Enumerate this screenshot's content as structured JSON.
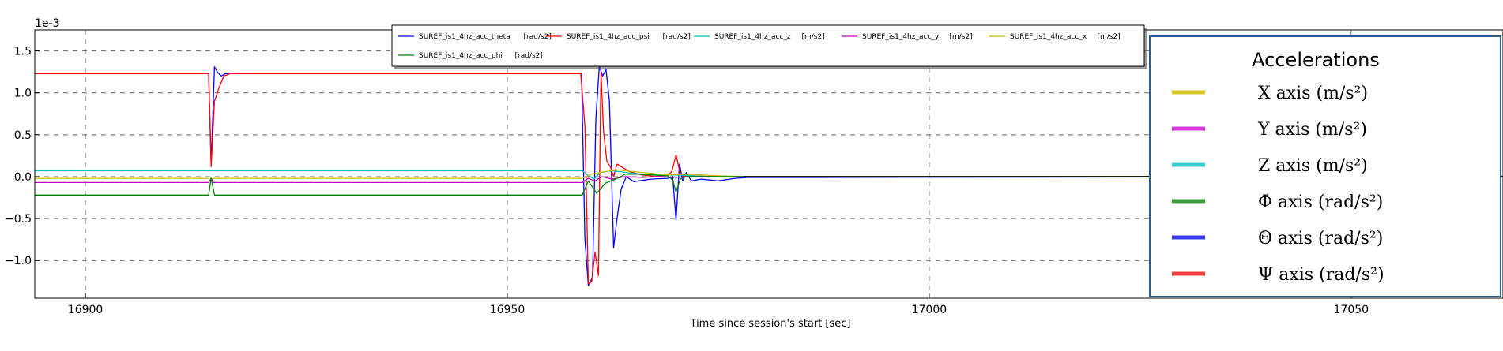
{
  "chart_data": {
    "type": "line",
    "title": "",
    "xlabel": "Time since session's start [sec]",
    "ylabel": "",
    "y_offset_label": "1e-3",
    "xlim": [
      16894,
      17068
    ],
    "ylim": [
      -1.45,
      1.75
    ],
    "x_ticks": [
      16900,
      16950,
      17000,
      17050
    ],
    "y_ticks": [
      -1.0,
      -0.5,
      0.0,
      0.5,
      1.0,
      1.5
    ],
    "y_tick_labels": [
      "−1.0",
      "−0.5",
      "0.0",
      "0.5",
      "1.0",
      "1.5"
    ],
    "grid": true,
    "legend_position": "top",
    "series": [
      {
        "name": "SUREF_is1_4hz_acc_theta",
        "unit": "[rad/s2]",
        "color": "#0000ff",
        "x": [
          16894,
          16914.6,
          16914.9,
          16915.3,
          16915.7,
          16916.1,
          16916.6,
          16917.5,
          16958.8,
          16959.2,
          16959.6,
          16960.1,
          16960.5,
          16960.9,
          16961.3,
          16961.7,
          16962.1,
          16962.6,
          16963.0,
          16963.5,
          16964.1,
          16965.0,
          16967.0,
          16969.0,
          16969.6,
          16970.0,
          16970.4,
          16970.8,
          16971.2,
          16971.8,
          16973.0,
          16975.0,
          16977.0,
          16978.5,
          17068
        ],
        "y": [
          1.23,
          1.23,
          0.15,
          1.31,
          1.24,
          1.2,
          1.23,
          1.23,
          1.23,
          -0.75,
          -1.3,
          -1.2,
          0.7,
          1.32,
          1.2,
          1.28,
          0.9,
          -0.85,
          -0.5,
          -0.15,
          0.0,
          -0.06,
          -0.03,
          -0.02,
          0.0,
          -0.52,
          0.15,
          -0.05,
          0.05,
          -0.05,
          -0.03,
          -0.05,
          -0.02,
          -0.01,
          0.0
        ]
      },
      {
        "name": "SUREF_is1_4hz_acc_psi",
        "unit": "[rad/s2]",
        "color": "#ff0000",
        "x": [
          16894,
          16914.6,
          16914.9,
          16915.3,
          16915.8,
          16916.4,
          16917.2,
          16958.7,
          16959.2,
          16959.6,
          16960.0,
          16960.4,
          16960.8,
          16961.1,
          16961.4,
          16961.8,
          16962.2,
          16962.6,
          16963.0,
          16963.5,
          16964.5,
          16966.0,
          16967.5,
          16969.0,
          16969.5,
          16970.0,
          16970.5,
          16971.0,
          16972.0,
          16974.0,
          16976.0,
          16978.0,
          17068
        ],
        "y": [
          1.23,
          1.23,
          0.12,
          0.9,
          1.05,
          1.2,
          1.23,
          1.23,
          0.6,
          -1.28,
          -1.25,
          -0.9,
          -1.18,
          1.25,
          0.55,
          0.18,
          0.12,
          0.0,
          0.15,
          0.12,
          0.06,
          0.02,
          0.0,
          0.02,
          0.06,
          0.26,
          0.03,
          0.0,
          0.01,
          0.0,
          0.0,
          0.0,
          0.0
        ]
      },
      {
        "name": "SUREF_is1_4hz_acc_z",
        "unit": "[m/s2]",
        "color": "#00bfbf",
        "x": [
          16894,
          16958.9,
          16959.5,
          16960.3,
          16961.0,
          16962.5,
          16964.0,
          16966.0,
          16968.0,
          16970.0,
          16972.0,
          16974.0,
          16976.0,
          16978.0,
          17068
        ],
        "y": [
          0.07,
          0.07,
          0.02,
          -0.03,
          0.05,
          0.07,
          0.05,
          0.03,
          0.02,
          0.02,
          0.01,
          0.0,
          0.0,
          0.0,
          0.0
        ]
      },
      {
        "name": "SUREF_is1_4hz_acc_y",
        "unit": "[m/s2]",
        "color": "#bf00bf",
        "x": [
          16894,
          16914.6,
          16914.9,
          16915.2,
          16958.9,
          16959.6,
          16960.4,
          16961.2,
          16962.4,
          16964.0,
          16966.0,
          16968.0,
          16970.0,
          16972.0,
          16976.0,
          17068
        ],
        "y": [
          -0.07,
          -0.07,
          -0.02,
          -0.07,
          -0.07,
          -0.02,
          -0.05,
          0.0,
          -0.03,
          0.0,
          -0.01,
          0.0,
          -0.01,
          0.0,
          0.0,
          0.0
        ]
      },
      {
        "name": "SUREF_is1_4hz_acc_x",
        "unit": "[m/s2]",
        "color": "#bfbf00",
        "x": [
          16894,
          16958.9,
          16960.0,
          16961.5,
          16963.0,
          16965.0,
          16967.0,
          16969.0,
          16971.0,
          16973.0,
          16975.0,
          16978.0,
          17068
        ],
        "y": [
          -0.02,
          -0.02,
          0.03,
          0.06,
          0.08,
          0.06,
          0.04,
          0.02,
          0.03,
          0.02,
          0.01,
          0.0,
          0.0
        ]
      },
      {
        "name": "SUREF_is1_4hz_acc_phi",
        "unit": "[rad/s2]",
        "color": "#008000",
        "x": [
          16894,
          16914.6,
          16914.9,
          16915.3,
          16958.9,
          16959.6,
          16960.6,
          16961.6,
          16962.8,
          16964.0,
          16965.5,
          16967.0,
          16969.0,
          16969.6,
          16970.0,
          16970.5,
          16971.2,
          16973.0,
          16976.0,
          16978.0,
          17068
        ],
        "y": [
          -0.22,
          -0.22,
          -0.02,
          -0.22,
          -0.22,
          -0.05,
          -0.2,
          -0.08,
          -0.03,
          0.03,
          0.03,
          0.02,
          0.01,
          -0.04,
          -0.18,
          -0.03,
          0.0,
          0.0,
          0.0,
          0.0,
          0.0
        ]
      },
      {
        "name": "",
        "unit": "",
        "color": "#000000",
        "x": [
          16978,
          17068
        ],
        "y": [
          0.0,
          0.0
        ]
      }
    ]
  },
  "side_panel": {
    "title": "Accelerations",
    "items": [
      {
        "label": "X axis (m/s²)",
        "color": "#d4c62a"
      },
      {
        "label": "Y axis (m/s²)",
        "color": "#d63ed6"
      },
      {
        "label": "Z axis (m/s²)",
        "color": "#3ccccc"
      },
      {
        "label": "Φ axis (rad/s²)",
        "color": "#3b9a3b"
      },
      {
        "label": "Θ axis (rad/s²)",
        "color": "#3b3bea"
      },
      {
        "label": "Ψ axis (rad/s²)",
        "color": "#f04040"
      }
    ]
  }
}
